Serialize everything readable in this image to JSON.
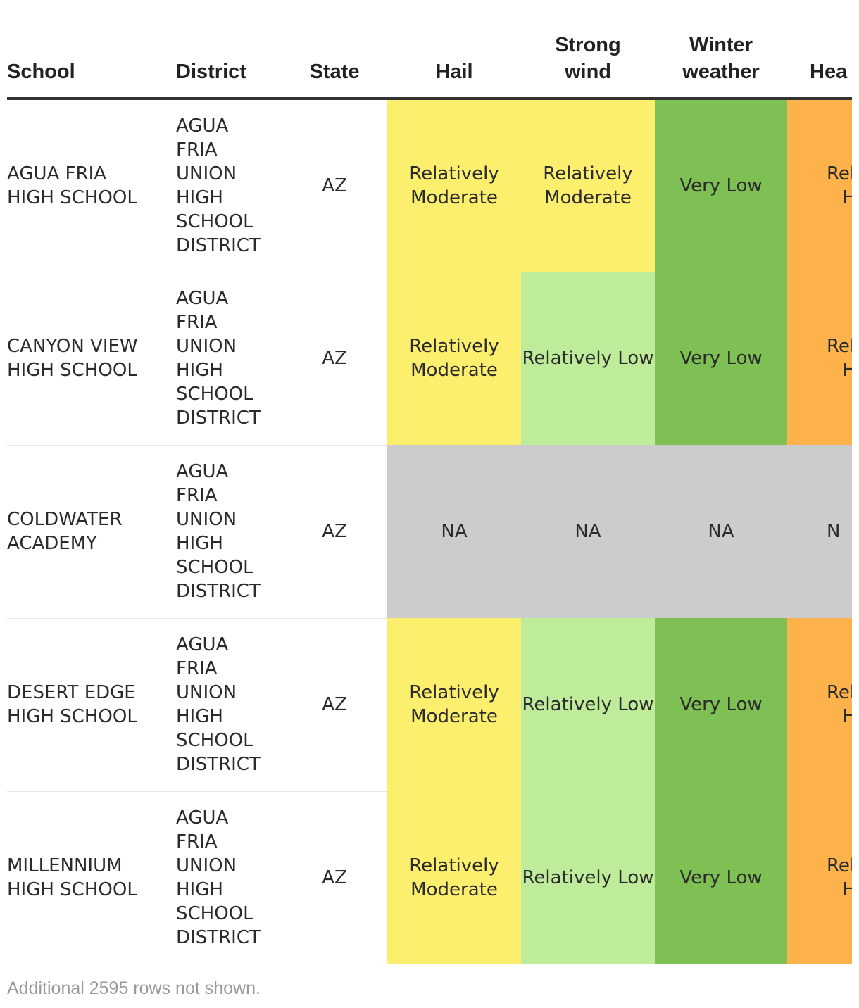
{
  "columns": {
    "school": "School",
    "district": "District",
    "state": "State",
    "hail": "Hail",
    "strong_wind": "Strong wind",
    "winter_weather": "Winter weather",
    "heat": "Hea"
  },
  "colors": {
    "relatively_moderate": "#FCEF6E",
    "relatively_low": "#BEEC9A",
    "very_low": "#7FC054",
    "relatively_high": "#FDB24C",
    "na": "#CCCCCC"
  },
  "rows": [
    {
      "school": "AGUA FRIA HIGH SCHOOL",
      "district": "AGUA FRIA UNION HIGH SCHOOL DISTRICT",
      "state": "AZ",
      "hail": "Relatively Moderate",
      "strong_wind": "Relatively Moderate",
      "winter_weather": "Very Low",
      "heat": "Rela H",
      "hail_level": "relatively_moderate",
      "wind_level": "relatively_moderate",
      "winter_level": "very_low",
      "heat_level": "relatively_high"
    },
    {
      "school": "CANYON VIEW HIGH SCHOOL",
      "district": "AGUA FRIA UNION HIGH SCHOOL DISTRICT",
      "state": "AZ",
      "hail": "Relatively Moderate",
      "strong_wind": "Relatively Low",
      "winter_weather": "Very Low",
      "heat": "Rela H",
      "hail_level": "relatively_moderate",
      "wind_level": "relatively_low",
      "winter_level": "very_low",
      "heat_level": "relatively_high"
    },
    {
      "school": "COLDWATER ACADEMY",
      "district": "AGUA FRIA UNION HIGH SCHOOL DISTRICT",
      "state": "AZ",
      "hail": "NA",
      "strong_wind": "NA",
      "winter_weather": "NA",
      "heat": "N",
      "hail_level": "na",
      "wind_level": "na",
      "winter_level": "na",
      "heat_level": "na"
    },
    {
      "school": "DESERT EDGE HIGH SCHOOL",
      "district": "AGUA FRIA UNION HIGH SCHOOL DISTRICT",
      "state": "AZ",
      "hail": "Relatively Moderate",
      "strong_wind": "Relatively Low",
      "winter_weather": "Very Low",
      "heat": "Rela H",
      "hail_level": "relatively_moderate",
      "wind_level": "relatively_low",
      "winter_level": "very_low",
      "heat_level": "relatively_high"
    },
    {
      "school": "MILLENNIUM HIGH SCHOOL",
      "district": "AGUA FRIA UNION HIGH SCHOOL DISTRICT",
      "state": "AZ",
      "hail": "Relatively Moderate",
      "strong_wind": "Relatively Low",
      "winter_weather": "Very Low",
      "heat": "Rela H",
      "hail_level": "relatively_moderate",
      "wind_level": "relatively_low",
      "winter_level": "very_low",
      "heat_level": "relatively_high"
    }
  ],
  "footnote": "Additional 2595 rows not shown."
}
